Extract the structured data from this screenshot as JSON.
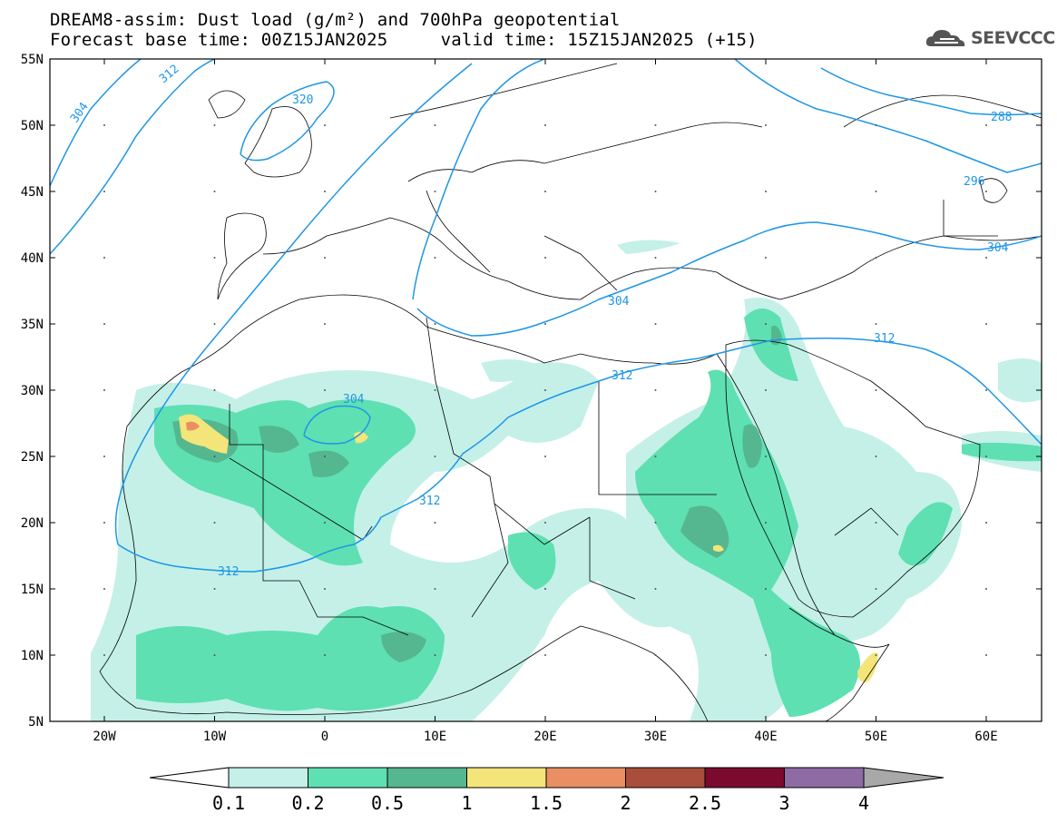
{
  "header": {
    "line1": "DREAM8-assim: Dust load (g/m²) and 700hPa geopotential",
    "line2": "Forecast base time: 00Z15JAN2025     valid time: 15Z15JAN2025 (+15)"
  },
  "logo": {
    "text": "SEEVCCC",
    "icon": "cloud-logo-icon"
  },
  "map": {
    "lat_labels": [
      "55N",
      "50N",
      "45N",
      "40N",
      "35N",
      "30N",
      "25N",
      "20N",
      "15N",
      "10N",
      "5N"
    ],
    "lon_labels": [
      "20W",
      "10W",
      "0",
      "10E",
      "20E",
      "30E",
      "40E",
      "50E",
      "60E"
    ],
    "contour_labels": [
      "312",
      "304",
      "320",
      "288",
      "296",
      "304",
      "304",
      "312",
      "312",
      "304",
      "312",
      "312"
    ]
  },
  "legend": {
    "labels": [
      "0.1",
      "0.2",
      "0.5",
      "1",
      "1.5",
      "2",
      "2.5",
      "3",
      "4"
    ],
    "colors": [
      "#c4f0e8",
      "#5ee0b2",
      "#55b78f",
      "#f3e579",
      "#ea8e63",
      "#a94e3c",
      "#7a0a2e",
      "#8e6ba3"
    ],
    "under_color": "#ffffff",
    "over_color": "#a8a8a8"
  }
}
